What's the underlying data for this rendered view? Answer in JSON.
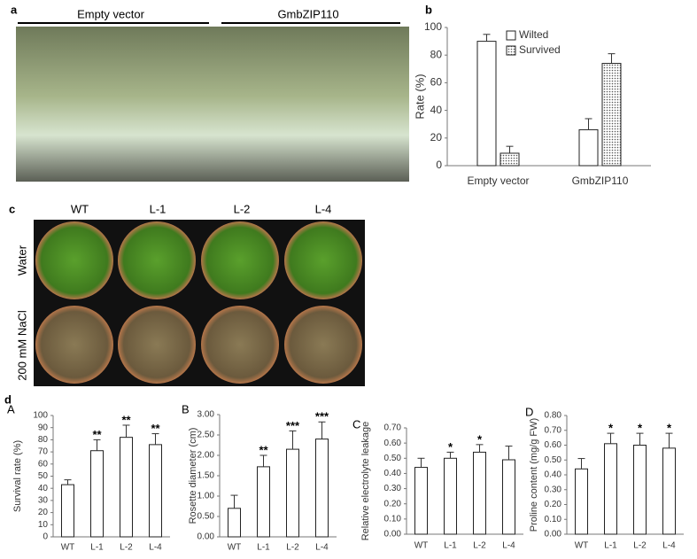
{
  "figure": {
    "panel_a": "a",
    "photo_groups": [
      "Empty vector",
      "GmbZIP110"
    ],
    "panel_c": "c",
    "genotypes": [
      "WT",
      "L-1",
      "L-2",
      "L-4"
    ],
    "treatments": [
      "Water",
      "200 mM NaCl"
    ],
    "panel_d": "d"
  },
  "chart_data": [
    {
      "type": "bar",
      "panel": "b",
      "ylabel": "Rate (%)",
      "categories": [
        "Empty vector",
        "GmbZIP110"
      ],
      "series": [
        {
          "name": "Wilted",
          "color": "#ffffff",
          "values": [
            90,
            26
          ],
          "errors": [
            5,
            8
          ]
        },
        {
          "name": "Survived",
          "color": "#ffffff",
          "hatch": "dots",
          "values": [
            9,
            74
          ],
          "errors": [
            5,
            7
          ]
        }
      ],
      "ylim": [
        0,
        100
      ],
      "yticks": [
        0,
        20,
        40,
        60,
        80,
        100
      ],
      "legend": "top"
    },
    {
      "type": "bar",
      "panel": "A",
      "ylabel": "Survival rate (%)",
      "categories": [
        "WT",
        "L-1",
        "L-2",
        "L-4"
      ],
      "values": [
        43,
        71,
        82,
        76
      ],
      "errors": [
        4,
        9,
        10,
        9
      ],
      "significance": [
        null,
        "**",
        "**",
        "**"
      ],
      "color": "#ffffff",
      "ylim": [
        0,
        100
      ],
      "yticks": [
        0,
        10,
        20,
        30,
        40,
        50,
        60,
        70,
        80,
        90,
        100
      ]
    },
    {
      "type": "bar",
      "panel": "B",
      "ylabel": "Rosette diameter (cm)",
      "categories": [
        "WT",
        "L-1",
        "L-2",
        "L-4"
      ],
      "values": [
        0.7,
        1.72,
        2.15,
        2.4
      ],
      "errors": [
        0.32,
        0.28,
        0.45,
        0.42
      ],
      "significance": [
        null,
        "**",
        "***",
        "***"
      ],
      "color": "#ffffff",
      "ylim": [
        0,
        3
      ],
      "yticks": [
        {
          "value": 0,
          "label": "0.00"
        },
        {
          "value": 0.5,
          "label": "0.50"
        },
        {
          "value": 1,
          "label": "1.00"
        },
        {
          "value": 1.5,
          "label": "1.50"
        },
        {
          "value": 2,
          "label": "2.00"
        },
        {
          "value": 2.5,
          "label": "2.50"
        },
        {
          "value": 3,
          "label": "3.00"
        }
      ]
    },
    {
      "type": "bar",
      "panel": "C",
      "ylabel": "Relative electrolyte leakage",
      "categories": [
        "WT",
        "L-1",
        "L-2",
        "L-4"
      ],
      "values": [
        0.44,
        0.5,
        0.54,
        0.49
      ],
      "errors": [
        0.06,
        0.04,
        0.05,
        0.09
      ],
      "significance": [
        null,
        "*",
        "*",
        null
      ],
      "color": "#ffffff",
      "ylim": [
        0,
        0.7
      ],
      "yticks": [
        {
          "value": 0,
          "label": "0.00"
        },
        {
          "value": 0.1,
          "label": "0.10"
        },
        {
          "value": 0.2,
          "label": "0.20"
        },
        {
          "value": 0.3,
          "label": "0.30"
        },
        {
          "value": 0.4,
          "label": "0.40"
        },
        {
          "value": 0.5,
          "label": "0.50"
        },
        {
          "value": 0.6,
          "label": "0.60"
        },
        {
          "value": 0.7,
          "label": "0.70"
        }
      ]
    },
    {
      "type": "bar",
      "panel": "D",
      "ylabel": "Proline content (mg/g FW)",
      "categories": [
        "WT",
        "L-1",
        "L-2",
        "L-4"
      ],
      "values": [
        0.44,
        0.61,
        0.6,
        0.58
      ],
      "errors": [
        0.07,
        0.07,
        0.08,
        0.1
      ],
      "significance": [
        null,
        "*",
        "*",
        "*"
      ],
      "color": "#ffffff",
      "ylim": [
        0,
        0.8
      ],
      "yticks": [
        {
          "value": 0,
          "label": "0.00"
        },
        {
          "value": 0.1,
          "label": "0.10"
        },
        {
          "value": 0.2,
          "label": "0.20"
        },
        {
          "value": 0.3,
          "label": "0.30"
        },
        {
          "value": 0.4,
          "label": "0.40"
        },
        {
          "value": 0.5,
          "label": "0.50"
        },
        {
          "value": 0.6,
          "label": "0.60"
        },
        {
          "value": 0.7,
          "label": "0.70"
        },
        {
          "value": 0.8,
          "label": "0.80"
        }
      ]
    }
  ]
}
